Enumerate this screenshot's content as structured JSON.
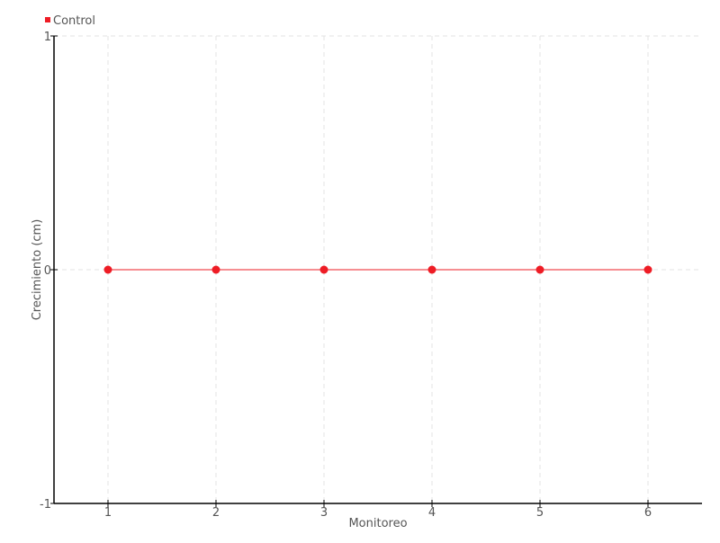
{
  "chart_data": {
    "type": "line",
    "xlabel": "Monitoreo",
    "ylabel": "Crecimiento (cm)",
    "x": [
      1,
      2,
      3,
      4,
      5,
      6
    ],
    "xticks": [
      "1",
      "2",
      "3",
      "4",
      "5",
      "6"
    ],
    "xlim": [
      0.5,
      6.5
    ],
    "ylim": [
      -1,
      1
    ],
    "yticks": [
      "-1",
      "0",
      "1"
    ],
    "yticks_values": [
      -1,
      0,
      1
    ],
    "grid": true,
    "legend": "top-left",
    "series": [
      {
        "name": "Control",
        "color": "#ee1c25",
        "values": [
          0,
          0,
          0,
          0,
          0,
          0
        ]
      }
    ]
  }
}
